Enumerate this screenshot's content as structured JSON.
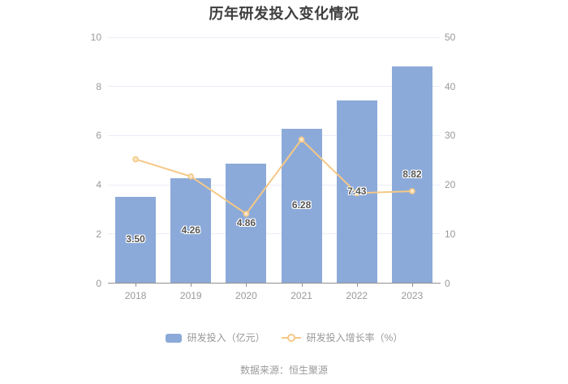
{
  "title": "历年研发投入变化情况",
  "source_note": "数据来源：恒生聚源",
  "legend": {
    "bar_label": "研发投入（亿元）",
    "line_label": "研发投入增长率（%）"
  },
  "colors": {
    "bar": "#8CAAD9",
    "line": "#F5C886",
    "marker_fill": "#FBE8C6",
    "grid": "#E9EDF5",
    "axis_line": "#909090",
    "axis_label": "#999999",
    "bar_value_label": "#575757",
    "title": "#3E3E3E",
    "legend_text": "#999999",
    "source_text": "#9A9A9A"
  },
  "chart_data": {
    "type": "bar",
    "title": "历年研发投入变化情况",
    "xlabel": "",
    "ylabel_left": "研发投入（亿元）",
    "ylabel_right": "研发投入增长率（%）",
    "categories": [
      "2018",
      "2019",
      "2020",
      "2021",
      "2022",
      "2023"
    ],
    "series": [
      {
        "name": "研发投入（亿元）",
        "type": "bar",
        "y_axis": "left",
        "values": [
          3.5,
          4.26,
          4.86,
          6.28,
          7.43,
          8.82
        ],
        "value_labels": [
          "3.50",
          "4.26",
          "4.86",
          "6.28",
          "7.43",
          "8.82"
        ]
      },
      {
        "name": "研发投入增长率（%）",
        "type": "line",
        "y_axis": "right",
        "values": [
          25.2,
          21.7,
          14.1,
          29.2,
          18.3,
          18.7
        ]
      }
    ],
    "left_axis": {
      "min": 0,
      "max": 10,
      "ticks": [
        0,
        2,
        4,
        6,
        8,
        10
      ],
      "tick_labels": [
        "0",
        "2",
        "4",
        "6",
        "8",
        "10"
      ]
    },
    "right_axis": {
      "min": 0,
      "max": 50,
      "ticks": [
        0,
        10,
        20,
        30,
        40,
        50
      ],
      "tick_labels": [
        "0",
        "10",
        "20",
        "30",
        "40",
        "50"
      ]
    },
    "grid": true,
    "legend_position": "bottom"
  }
}
